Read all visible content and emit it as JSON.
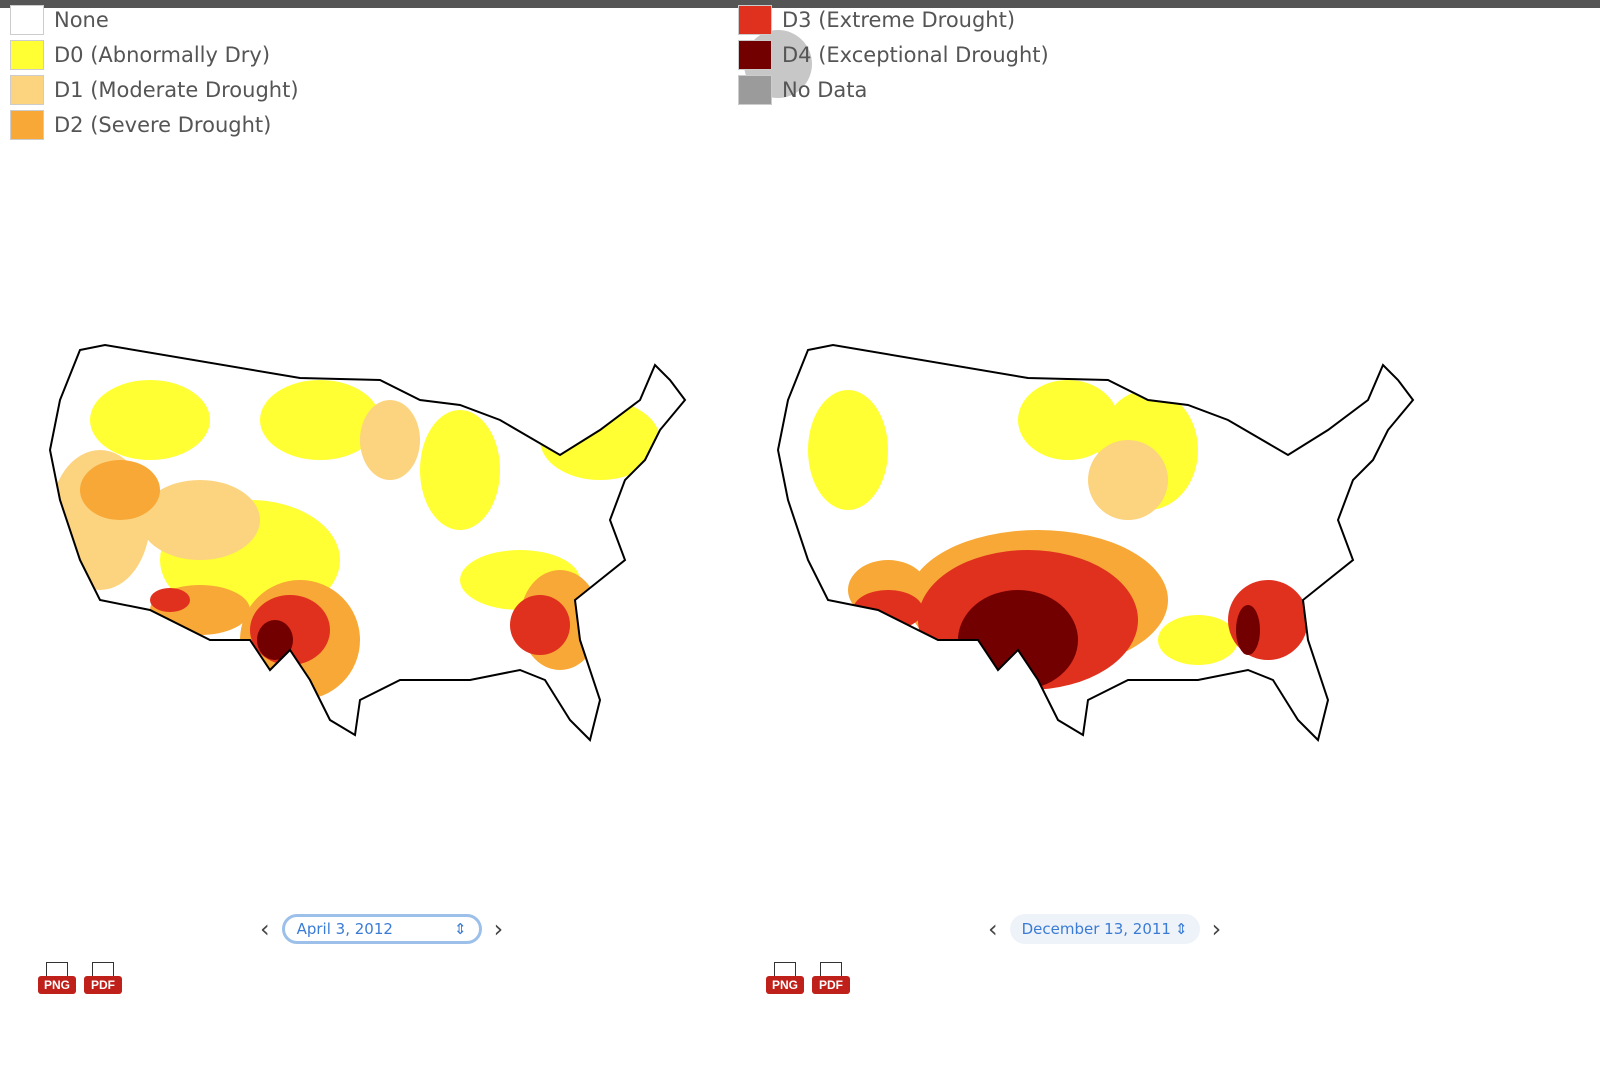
{
  "legend": {
    "items": [
      {
        "label": "None",
        "color": "#ffffff"
      },
      {
        "label": "D0 (Abnormally Dry)",
        "color": "#ffff33"
      },
      {
        "label": "D1 (Moderate Drought)",
        "color": "#fcd37f"
      },
      {
        "label": "D2 (Severe Drought)",
        "color": "#f7a836"
      },
      {
        "label": "D3 (Extreme Drought)",
        "color": "#e0301e"
      },
      {
        "label": "D4 (Exceptional Drought)",
        "color": "#730000"
      },
      {
        "label": "No Data",
        "color": "#9b9b9b"
      }
    ]
  },
  "panels": [
    {
      "date": "April 3, 2012",
      "buttons": [
        "PNG",
        "PDF"
      ]
    },
    {
      "date": "December 13, 2011",
      "buttons": [
        "PNG",
        "PDF"
      ]
    }
  ]
}
